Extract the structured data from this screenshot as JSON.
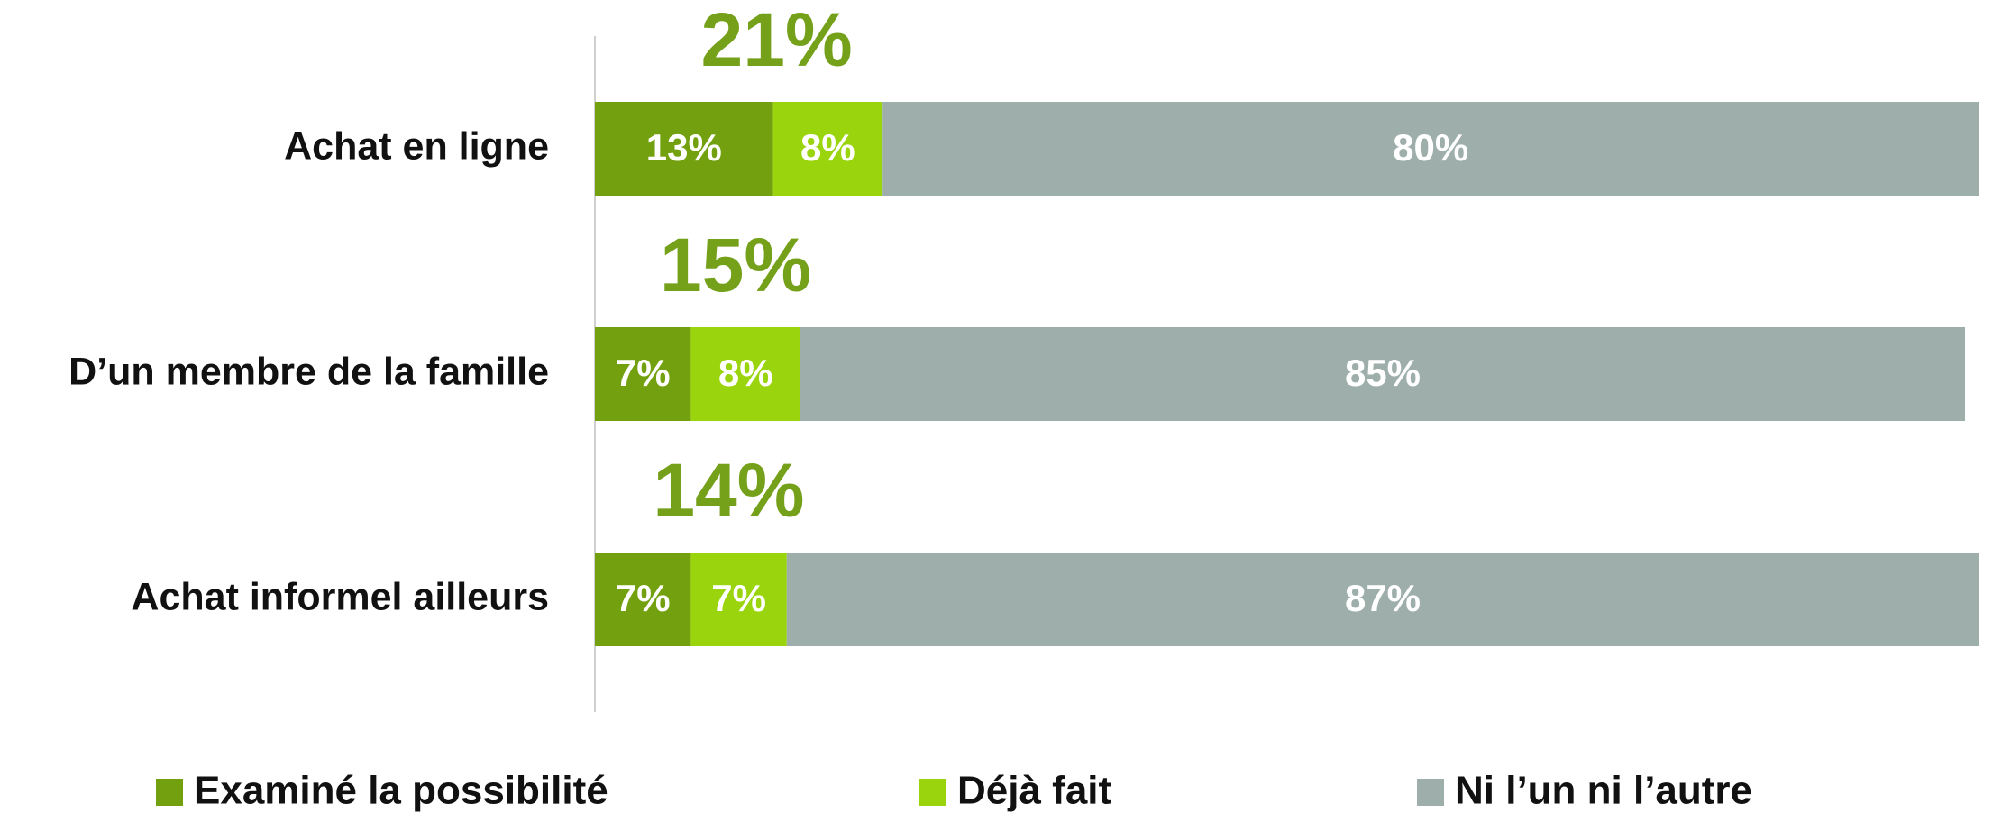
{
  "chart_data": {
    "type": "stacked-bar-horizontal",
    "categories": [
      "Achat en ligne",
      "D’un membre de la famille",
      "Achat informel ailleurs"
    ],
    "series": [
      {
        "name": "Examiné la possibilité",
        "color": "#72a00e",
        "values": [
          13,
          7,
          7
        ],
        "value_labels": [
          "13%",
          "7%",
          "7%"
        ]
      },
      {
        "name": "Déjà fait",
        "color": "#9ad40c",
        "values": [
          8,
          8,
          7
        ],
        "value_labels": [
          "8%",
          "8%",
          "7%"
        ]
      },
      {
        "name": "Ni l’un ni l’autre",
        "color": "#9eaeab",
        "values": [
          80,
          85,
          87
        ],
        "value_labels": [
          "80%",
          "85%",
          "87%"
        ]
      }
    ],
    "totals": {
      "color": "#74a01a",
      "values": [
        21,
        15,
        14
      ],
      "value_labels": [
        "21%",
        "15%",
        "14%"
      ]
    },
    "xlim": [
      0,
      100
    ]
  }
}
